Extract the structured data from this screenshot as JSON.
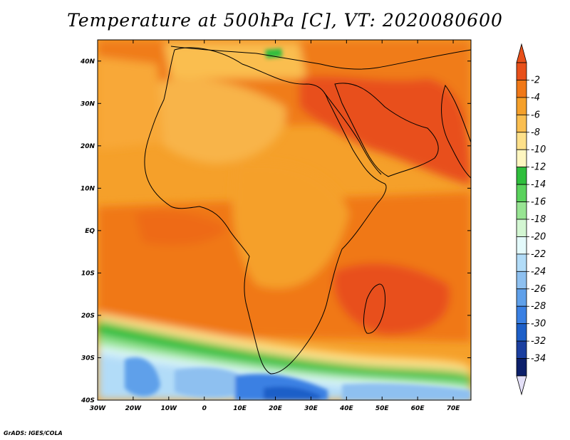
{
  "title": "Temperature at 500hPa [C], VT: 2020080600",
  "credit": "GrADS: IGES/COLA",
  "map": {
    "lon_labels": [
      "30W",
      "20W",
      "10W",
      "0",
      "10E",
      "20E",
      "30E",
      "40E",
      "50E",
      "60E",
      "70E"
    ],
    "lat_labels": [
      "40N",
      "30N",
      "20N",
      "10N",
      "EQ",
      "10S",
      "20S",
      "30S",
      "40S"
    ]
  },
  "colorbar": {
    "labels": [
      "-2",
      "-4",
      "-6",
      "-8",
      "-10",
      "-12",
      "-14",
      "-16",
      "-18",
      "-20",
      "-22",
      "-24",
      "-26",
      "-28",
      "-30",
      "-32",
      "-34"
    ],
    "colors": [
      "#e8501a",
      "#f07818",
      "#f5a02a",
      "#fabe50",
      "#fde08a",
      "#fef6c0",
      "#2fbe3c",
      "#5ad25c",
      "#98e493",
      "#d3f6d2",
      "#e4fafb",
      "#b2dcf8",
      "#8ec0f0",
      "#5fa0ea",
      "#3a80e3",
      "#1d5fc8",
      "#1b3fa0",
      "#0c1f6a"
    ],
    "under_color": "#e4e0f8",
    "over_color": "#e8501a"
  }
}
